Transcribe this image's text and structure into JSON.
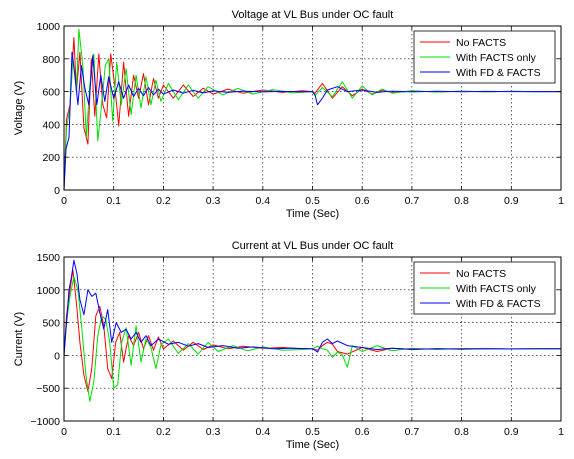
{
  "colors": {
    "no_facts": "#ff0000",
    "facts_only": "#00dd00",
    "fd_facts": "#0000ff"
  },
  "chart_data": [
    {
      "type": "line",
      "title": "Voltage at VL Bus under OC fault",
      "xlabel": "Time (Sec)",
      "ylabel": "Voltage (V)",
      "xlim": [
        0,
        1
      ],
      "ylim": [
        0,
        1000
      ],
      "xticks": [
        "0",
        "0.1",
        "0.2",
        "0.3",
        "0.4",
        "0.5",
        "0.6",
        "0.7",
        "0.8",
        "0.9",
        "1"
      ],
      "yticks": [
        "0",
        "200",
        "400",
        "600",
        "800",
        "1000"
      ],
      "grid": true,
      "legend_position": "top-right",
      "series": [
        {
          "name": "No FACTS",
          "color": "#ff0000",
          "x": [
            0,
            0.005,
            0.012,
            0.02,
            0.025,
            0.032,
            0.04,
            0.048,
            0.055,
            0.062,
            0.07,
            0.078,
            0.086,
            0.094,
            0.102,
            0.11,
            0.12,
            0.13,
            0.14,
            0.15,
            0.16,
            0.17,
            0.18,
            0.19,
            0.2,
            0.22,
            0.24,
            0.26,
            0.28,
            0.3,
            0.33,
            0.36,
            0.4,
            0.44,
            0.48,
            0.5,
            0.505,
            0.52,
            0.54,
            0.56,
            0.58,
            0.6,
            0.62,
            0.64,
            0.66,
            0.7,
            0.75,
            0.8,
            0.85,
            0.9,
            0.95,
            1.0
          ],
          "y": [
            0,
            430,
            520,
            930,
            600,
            840,
            380,
            280,
            800,
            450,
            830,
            520,
            440,
            830,
            640,
            390,
            780,
            450,
            700,
            560,
            710,
            520,
            680,
            560,
            640,
            560,
            640,
            570,
            620,
            585,
            615,
            590,
            610,
            595,
            605,
            600,
            590,
            650,
            560,
            630,
            575,
            615,
            585,
            608,
            594,
            603,
            598,
            602,
            599,
            601,
            600,
            600
          ]
        },
        {
          "name": "With FACTS only",
          "color": "#00dd00",
          "x": [
            0,
            0.005,
            0.012,
            0.018,
            0.025,
            0.03,
            0.038,
            0.045,
            0.052,
            0.06,
            0.068,
            0.075,
            0.083,
            0.09,
            0.098,
            0.106,
            0.115,
            0.125,
            0.135,
            0.145,
            0.155,
            0.165,
            0.175,
            0.185,
            0.195,
            0.21,
            0.23,
            0.25,
            0.27,
            0.29,
            0.32,
            0.35,
            0.38,
            0.42,
            0.46,
            0.5,
            0.505,
            0.52,
            0.54,
            0.56,
            0.58,
            0.6,
            0.62,
            0.64,
            0.66,
            0.7,
            0.75,
            0.8,
            0.85,
            0.9,
            0.95,
            1.0
          ],
          "y": [
            0,
            380,
            500,
            800,
            600,
            980,
            750,
            320,
            640,
            830,
            300,
            500,
            760,
            800,
            420,
            780,
            520,
            740,
            460,
            700,
            500,
            690,
            520,
            670,
            540,
            650,
            550,
            640,
            560,
            630,
            580,
            620,
            585,
            612,
            592,
            600,
            575,
            625,
            568,
            660,
            560,
            635,
            580,
            615,
            590,
            606,
            597,
            603,
            598,
            602,
            599,
            600
          ]
        },
        {
          "name": "With FD & FACTS",
          "color": "#0000ff",
          "x": [
            0,
            0.004,
            0.01,
            0.016,
            0.022,
            0.028,
            0.035,
            0.042,
            0.05,
            0.058,
            0.066,
            0.074,
            0.082,
            0.09,
            0.1,
            0.11,
            0.12,
            0.13,
            0.14,
            0.15,
            0.16,
            0.17,
            0.18,
            0.19,
            0.2,
            0.22,
            0.24,
            0.26,
            0.28,
            0.3,
            0.33,
            0.36,
            0.4,
            0.44,
            0.48,
            0.5,
            0.505,
            0.51,
            0.52,
            0.53,
            0.55,
            0.57,
            0.6,
            0.63,
            0.66,
            0.7,
            0.75,
            0.8,
            0.85,
            0.9,
            0.95,
            1.0
          ],
          "y": [
            0,
            250,
            320,
            840,
            700,
            520,
            760,
            620,
            520,
            820,
            520,
            700,
            540,
            690,
            560,
            660,
            560,
            640,
            570,
            620,
            575,
            625,
            580,
            615,
            585,
            610,
            590,
            608,
            592,
            604,
            595,
            603,
            598,
            601,
            599,
            600,
            580,
            520,
            560,
            610,
            630,
            600,
            610,
            595,
            603,
            598,
            602,
            599,
            601,
            600,
            600,
            600
          ]
        }
      ]
    },
    {
      "type": "line",
      "title": "Current at VL Bus under OC fault",
      "xlabel": "Time (Sec)",
      "ylabel": "Current (V)",
      "xlim": [
        0,
        1
      ],
      "ylim": [
        -1000,
        1500
      ],
      "xticks": [
        "0",
        "0.1",
        "0.2",
        "0.3",
        "0.4",
        "0.5",
        "0.6",
        "0.7",
        "0.8",
        "0.9",
        "1"
      ],
      "yticks": [
        "−1000",
        "−500",
        "0",
        "500",
        "1000",
        "1500"
      ],
      "grid": true,
      "legend_position": "top-right",
      "series": [
        {
          "name": "No FACTS",
          "color": "#ff0000",
          "x": [
            0,
            0.005,
            0.012,
            0.018,
            0.025,
            0.032,
            0.04,
            0.048,
            0.056,
            0.064,
            0.072,
            0.08,
            0.088,
            0.096,
            0.104,
            0.112,
            0.12,
            0.13,
            0.14,
            0.15,
            0.16,
            0.17,
            0.18,
            0.19,
            0.2,
            0.22,
            0.24,
            0.26,
            0.28,
            0.3,
            0.33,
            0.36,
            0.4,
            0.44,
            0.48,
            0.5,
            0.51,
            0.52,
            0.53,
            0.54,
            0.55,
            0.57,
            0.6,
            0.63,
            0.66,
            0.7,
            0.75,
            0.8,
            0.85,
            0.9,
            0.95,
            1.0
          ],
          "y": [
            0,
            600,
            1000,
            1300,
            800,
            200,
            -300,
            -550,
            -200,
            600,
            750,
            450,
            -200,
            -350,
            200,
            350,
            -100,
            300,
            150,
            350,
            100,
            300,
            80,
            280,
            100,
            220,
            80,
            200,
            90,
            160,
            100,
            140,
            110,
            120,
            100,
            100,
            80,
            150,
            200,
            170,
            60,
            20,
            120,
            60,
            110,
            90,
            100,
            95,
            100,
            98,
            100,
            100
          ]
        },
        {
          "name": "With FACTS only",
          "color": "#00dd00",
          "x": [
            0,
            0.005,
            0.012,
            0.02,
            0.028,
            0.036,
            0.044,
            0.052,
            0.06,
            0.068,
            0.076,
            0.084,
            0.092,
            0.1,
            0.108,
            0.116,
            0.125,
            0.135,
            0.145,
            0.155,
            0.165,
            0.175,
            0.185,
            0.195,
            0.21,
            0.23,
            0.25,
            0.27,
            0.29,
            0.31,
            0.34,
            0.37,
            0.4,
            0.44,
            0.48,
            0.5,
            0.51,
            0.52,
            0.53,
            0.54,
            0.55,
            0.56,
            0.57,
            0.58,
            0.6,
            0.63,
            0.66,
            0.7,
            0.75,
            0.8,
            0.9,
            1.0
          ],
          "y": [
            0,
            500,
            900,
            1200,
            1000,
            400,
            -300,
            -700,
            -400,
            300,
            600,
            550,
            200,
            -500,
            -450,
            200,
            420,
            -150,
            450,
            -100,
            250,
            120,
            -200,
            160,
            250,
            30,
            180,
            20,
            200,
            60,
            150,
            70,
            130,
            80,
            90,
            100,
            140,
            100,
            80,
            -30,
            50,
            10,
            -180,
            150,
            60,
            150,
            70,
            110,
            90,
            105,
            98,
            100
          ]
        },
        {
          "name": "With FD & FACTS",
          "color": "#0000ff",
          "x": [
            0,
            0.005,
            0.01,
            0.015,
            0.02,
            0.026,
            0.032,
            0.04,
            0.048,
            0.056,
            0.064,
            0.072,
            0.08,
            0.088,
            0.096,
            0.105,
            0.115,
            0.125,
            0.135,
            0.145,
            0.155,
            0.165,
            0.175,
            0.19,
            0.21,
            0.23,
            0.25,
            0.27,
            0.29,
            0.32,
            0.35,
            0.38,
            0.42,
            0.46,
            0.5,
            0.505,
            0.51,
            0.52,
            0.53,
            0.54,
            0.55,
            0.57,
            0.6,
            0.63,
            0.66,
            0.7,
            0.75,
            0.8,
            0.85,
            0.9,
            0.95,
            1.0
          ],
          "y": [
            0,
            500,
            1000,
            1200,
            1450,
            1250,
            850,
            620,
            1000,
            900,
            950,
            650,
            400,
            700,
            200,
            500,
            350,
            400,
            250,
            350,
            200,
            300,
            150,
            250,
            170,
            200,
            140,
            180,
            120,
            150,
            110,
            130,
            100,
            110,
            100,
            80,
            50,
            200,
            250,
            180,
            220,
            150,
            120,
            90,
            110,
            95,
            102,
            98,
            100,
            99,
            100,
            100
          ]
        }
      ]
    }
  ]
}
